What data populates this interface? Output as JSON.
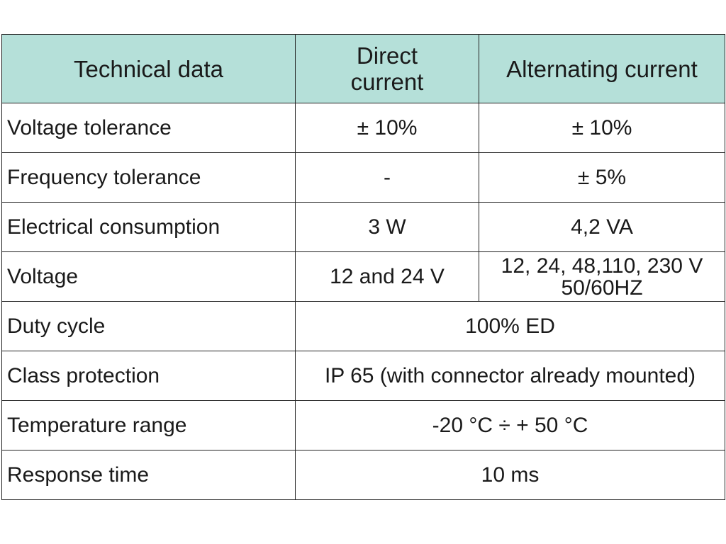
{
  "table": {
    "headers": [
      "Technical data",
      "Direct current",
      "Alternating current"
    ],
    "rows": [
      {
        "label": "Voltage tolerance",
        "dc": "± 10%",
        "ac": "± 10%"
      },
      {
        "label": "Frequency tolerance",
        "dc": "-",
        "ac": "± 5%"
      },
      {
        "label": "Electrical consumption",
        "dc": "3 W",
        "ac": "4,2 VA"
      },
      {
        "label": "Voltage",
        "dc": "12 and 24 V",
        "ac_line1": "12, 24, 48,110, 230 V",
        "ac_line2": "50/60HZ"
      },
      {
        "label": "Duty cycle",
        "value": "100% ED"
      },
      {
        "label": "Class protection",
        "value": "IP 65 (with connector already mounted)"
      },
      {
        "label": "Temperature range",
        "value": "-20 °C ÷ + 50 °C"
      },
      {
        "label": "Response time",
        "value": "10 ms"
      }
    ]
  },
  "colors": {
    "header_background": "#b5e0d9",
    "border": "#222222",
    "text": "#1a1a1a",
    "page_background": "#ffffff"
  }
}
